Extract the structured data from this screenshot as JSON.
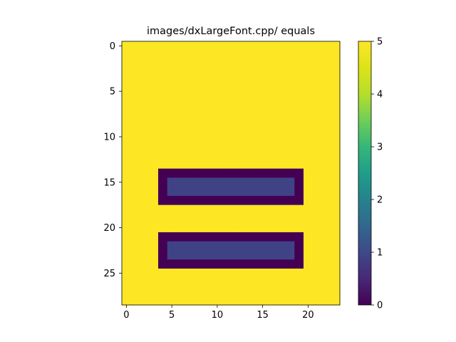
{
  "chart_data": {
    "type": "heatmap",
    "title": "images/dxLargeFont.cpp/ equals",
    "xlabel": "",
    "ylabel": "",
    "grid": false,
    "rows": 29,
    "cols": 24,
    "background_value": 5,
    "regions": [
      {
        "name": "upper-bar-outline",
        "row_start": 14,
        "row_end": 17,
        "col_start": 4,
        "col_end": 19,
        "value": 0
      },
      {
        "name": "upper-bar-fill",
        "row_start": 15,
        "row_end": 16,
        "col_start": 5,
        "col_end": 18,
        "value": 0.9
      },
      {
        "name": "lower-bar-outline",
        "row_start": 21,
        "row_end": 24,
        "col_start": 4,
        "col_end": 19,
        "value": 0
      },
      {
        "name": "lower-bar-fill",
        "row_start": 22,
        "row_end": 23,
        "col_start": 5,
        "col_end": 18,
        "value": 0.9
      }
    ],
    "xlim": [
      -0.5,
      23.5
    ],
    "ylim": [
      28.5,
      -0.5
    ],
    "xticks": [
      0,
      5,
      10,
      15,
      20
    ],
    "yticks": [
      0,
      5,
      10,
      15,
      20,
      25
    ],
    "colorbar": {
      "colormap": "viridis",
      "vmin": 0,
      "vmax": 5,
      "ticks": [
        0,
        1,
        2,
        3,
        4,
        5
      ]
    }
  }
}
